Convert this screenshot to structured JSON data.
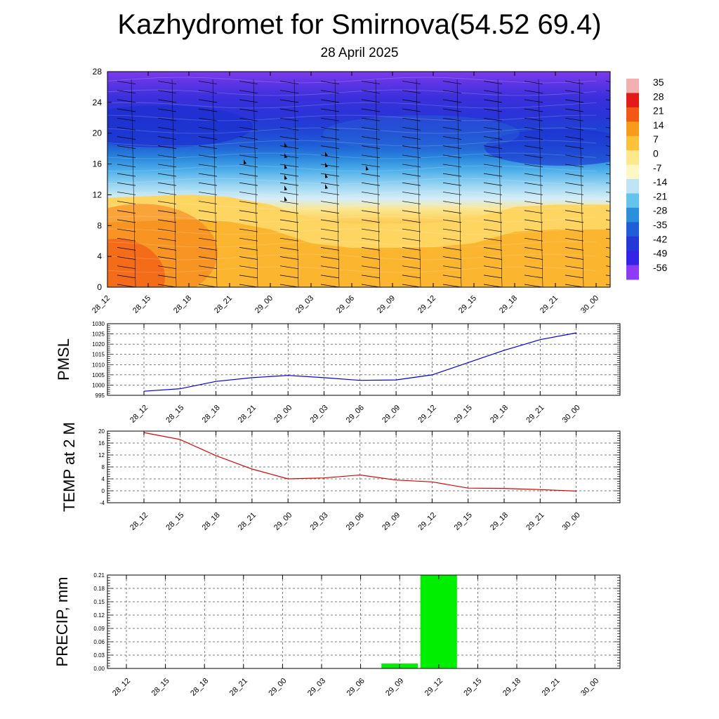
{
  "header": {
    "title": "Kazhydromet for Smirnova(54.52 69.4)",
    "subtitle": "28 April 2025"
  },
  "time_labels": [
    "28_12",
    "28_15",
    "28_18",
    "28_21",
    "29_00",
    "29_03",
    "29_06",
    "29_09",
    "29_12",
    "29_15",
    "29_18",
    "29_21",
    "30_00"
  ],
  "chart_data": [
    {
      "type": "heatmap",
      "name": "vertical-cross-section",
      "x": [
        "28_12",
        "28_15",
        "28_18",
        "28_21",
        "29_00",
        "29_03",
        "29_06",
        "29_09",
        "29_12",
        "29_15",
        "29_18",
        "29_21",
        "30_00"
      ],
      "ylim": [
        0,
        28
      ],
      "yticks": [
        "0",
        "4",
        "8",
        "12",
        "16",
        "20",
        "24",
        "28"
      ],
      "freezing_level": [
        11.6,
        11.8,
        12.0,
        11.7,
        10.7,
        8.9,
        8.3,
        8.3,
        8.4,
        8.9,
        10.4,
        10.7,
        10.7
      ],
      "colorbar_labels": [
        "35",
        "28",
        "21",
        "14",
        "7",
        "0",
        "-7",
        "-14",
        "-21",
        "-28",
        "-35",
        "-42",
        "-49",
        "-56"
      ],
      "colorbar_colors": [
        "#f2b0b0",
        "#e21a1a",
        "#f25a14",
        "#f99a1a",
        "#fbc23a",
        "#fde88c",
        "#fdf7c4",
        "#bfe4f5",
        "#63c4ec",
        "#2a90de",
        "#1f5fd6",
        "#2438d6",
        "#3424e4",
        "#8c3cf2"
      ],
      "wind_barbs": "shown"
    },
    {
      "type": "line",
      "name": "pmsl",
      "ylabel": "PMSL",
      "x": [
        "28_12",
        "28_15",
        "28_18",
        "28_21",
        "29_00",
        "29_03",
        "29_06",
        "29_09",
        "29_12",
        "29_15",
        "29_18",
        "29_21",
        "30_00"
      ],
      "values": [
        997.0,
        998.2,
        1001.8,
        1003.6,
        1004.7,
        1003.6,
        1002.3,
        1002.5,
        1005.0,
        1011.0,
        1017.0,
        1022.2,
        1025.5
      ],
      "ylim": [
        995,
        1030
      ],
      "yticks": [
        "995",
        "1000",
        "1005",
        "1010",
        "1015",
        "1020",
        "1025",
        "1030"
      ],
      "color": "#0000dd"
    },
    {
      "type": "line",
      "name": "temp-2m",
      "ylabel": "TEMP at 2 M",
      "x": [
        "28_12",
        "28_15",
        "28_18",
        "28_21",
        "29_00",
        "29_03",
        "29_06",
        "29_09",
        "29_12",
        "29_15",
        "29_18",
        "29_21",
        "30_00"
      ],
      "values": [
        19.5,
        17.2,
        11.8,
        7.3,
        4.0,
        4.3,
        5.3,
        3.6,
        3.0,
        0.9,
        0.8,
        0.4,
        -0.1
      ],
      "ylim": [
        -4,
        20
      ],
      "yticks": [
        "-4",
        "0",
        "4",
        "8",
        "12",
        "16",
        "20"
      ],
      "color": "#e00000"
    },
    {
      "type": "bar",
      "name": "precip",
      "ylabel": "PRECIP, mm",
      "categories": [
        "28_12",
        "28_15",
        "28_18",
        "28_21",
        "29_00",
        "29_03",
        "29_06",
        "29_09",
        "29_12",
        "29_15",
        "29_18",
        "29_21",
        "30_00"
      ],
      "values": [
        0,
        0,
        0,
        0,
        0,
        0,
        0,
        0.011,
        0.21,
        0,
        0,
        0,
        0
      ],
      "ylim": [
        0,
        0.21
      ],
      "yticks": [
        "0.00",
        "0.03",
        "0.06",
        "0.09",
        "0.12",
        "0.15",
        "0.18",
        "0.21"
      ],
      "color": "#00ee00"
    }
  ]
}
